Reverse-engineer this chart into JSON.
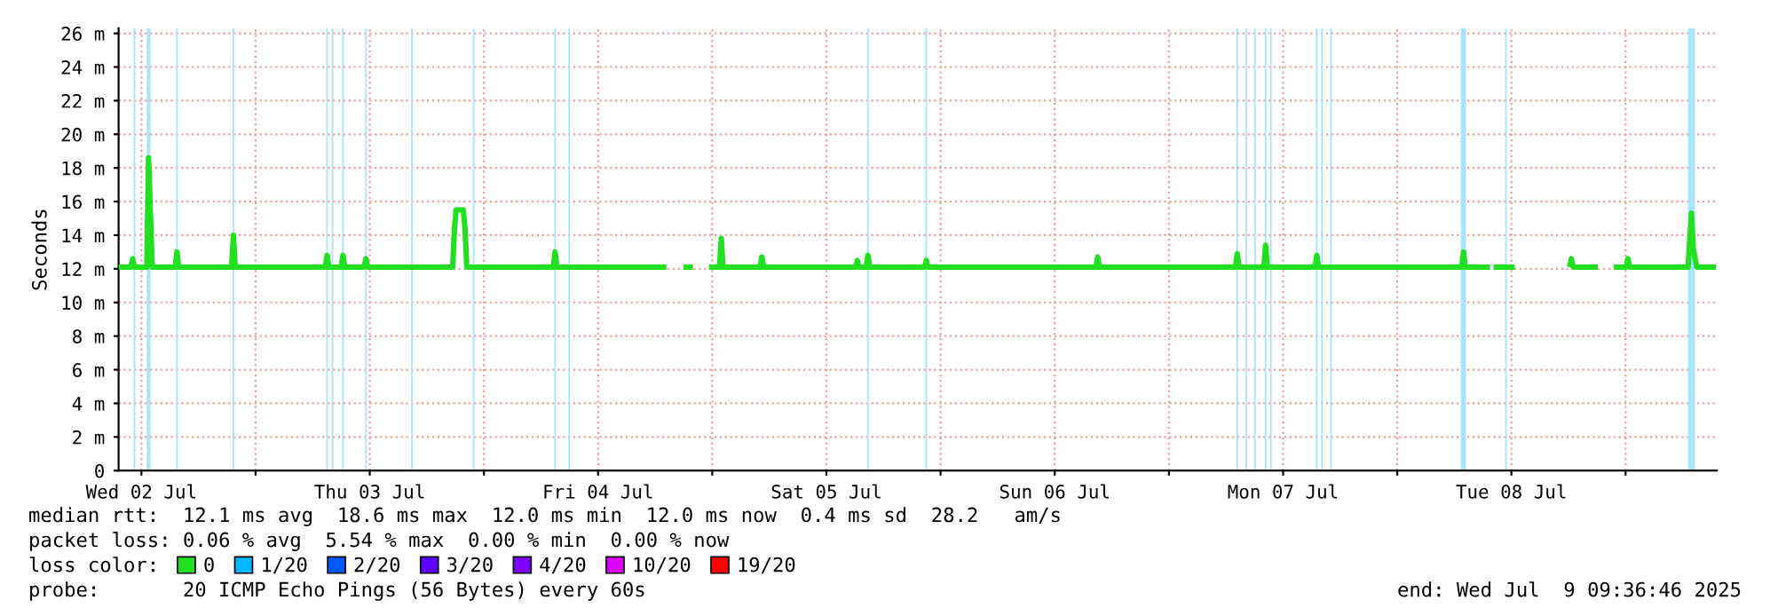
{
  "chart_data": {
    "type": "line",
    "ylabel": "Seconds",
    "legend_title": "loss color:",
    "legend": "bottom",
    "grid": true,
    "xlim": [
      "2025-07-02T09:36",
      "2025-07-09T09:36"
    ],
    "xticks": [
      {
        "value": "2025-07-02T12:00",
        "label": "Wed 02 Jul"
      },
      {
        "value": "2025-07-03T00:00",
        "label": null
      },
      {
        "value": "2025-07-03T12:00",
        "label": "Thu 03 Jul"
      },
      {
        "value": "2025-07-04T00:00",
        "label": null
      },
      {
        "value": "2025-07-04T12:00",
        "label": "Fri 04 Jul"
      },
      {
        "value": "2025-07-05T00:00",
        "label": null
      },
      {
        "value": "2025-07-05T12:00",
        "label": "Sat 05 Jul"
      },
      {
        "value": "2025-07-06T00:00",
        "label": null
      },
      {
        "value": "2025-07-06T12:00",
        "label": "Sun 06 Jul"
      },
      {
        "value": "2025-07-07T00:00",
        "label": null
      },
      {
        "value": "2025-07-07T12:00",
        "label": "Mon 07 Jul"
      },
      {
        "value": "2025-07-08T00:00",
        "label": null
      },
      {
        "value": "2025-07-08T12:00",
        "label": "Tue 08 Jul"
      },
      {
        "value": "2025-07-09T00:00",
        "label": null
      }
    ],
    "ylim": [
      0,
      26.3
    ],
    "yticks": [
      0,
      {
        "value": 2,
        "label": "2 m"
      },
      {
        "value": 4,
        "label": "4 m"
      },
      {
        "value": 6,
        "label": "6 m"
      },
      {
        "value": 8,
        "label": "8 m"
      },
      {
        "value": 10,
        "label": "10 m"
      },
      {
        "value": 12,
        "label": "12 m"
      },
      {
        "value": 14,
        "label": "14 m"
      },
      {
        "value": 16,
        "label": "16 m"
      },
      {
        "value": 18,
        "label": "18 m"
      },
      {
        "value": 20,
        "label": "20 m"
      },
      {
        "value": 22,
        "label": "22 m"
      },
      {
        "value": 24,
        "label": "24 m"
      },
      {
        "value": 26,
        "label": "26 m"
      }
    ],
    "series": [
      {
        "name": "0",
        "color": "#20e020",
        "x": [
          "2025-07-02T09:36",
          "2025-07-02T10:54",
          "2025-07-02T11:05",
          "2025-07-02T11:16",
          "2025-07-02T12:34",
          "2025-07-02T12:45",
          "2025-07-02T12:57",
          "2025-07-02T13:08",
          "2025-07-02T15:33",
          "2025-07-02T15:44",
          "2025-07-02T15:55",
          "2025-07-02T21:29",
          "2025-07-02T21:40",
          "2025-07-02T21:52",
          "2025-07-03T07:20",
          "2025-07-03T07:31",
          "2025-07-03T07:42",
          "2025-07-03T09:00",
          "2025-07-03T09:11",
          "2025-07-03T09:23",
          "2025-07-03T11:25",
          "2025-07-03T11:36",
          "2025-07-03T11:47",
          "2025-07-03T20:43",
          "2025-07-03T20:54",
          "2025-07-03T21:05",
          "2025-07-03T21:50",
          "2025-07-03T22:01",
          "2025-07-03T22:12",
          "2025-07-04T07:18",
          "2025-07-04T07:29",
          "2025-07-04T07:40",
          "2025-07-04T19:11",
          "2025-07-04T19:22",
          "2025-07-04T20:58",
          "2025-07-04T21:58",
          "2025-07-04T22:10",
          "2025-07-04T23:39",
          "2025-07-05T00:46",
          "2025-07-05T00:57",
          "2025-07-05T01:08",
          "2025-07-05T05:02",
          "2025-07-05T05:13",
          "2025-07-05T05:24",
          "2025-07-05T15:04",
          "2025-07-05T15:15",
          "2025-07-05T15:26",
          "2025-07-05T16:11",
          "2025-07-05T16:22",
          "2025-07-05T16:33",
          "2025-07-05T22:19",
          "2025-07-05T22:30",
          "2025-07-05T22:41",
          "2025-07-06T16:20",
          "2025-07-06T16:31",
          "2025-07-06T16:42",
          "2025-07-07T07:00",
          "2025-07-07T07:11",
          "2025-07-07T07:22",
          "2025-07-07T09:59",
          "2025-07-07T10:10",
          "2025-07-07T10:21",
          "2025-07-07T15:22",
          "2025-07-07T15:33",
          "2025-07-07T15:44",
          "2025-07-08T06:47",
          "2025-07-08T06:58",
          "2025-07-08T07:09",
          "2025-07-08T09:45",
          "2025-07-08T09:56",
          "2025-07-08T10:07",
          "2025-07-08T12:21",
          "2025-07-08T12:32",
          "2025-07-08T18:07",
          "2025-07-08T18:18",
          "2025-07-08T18:29",
          "2025-07-08T21:05",
          "2025-07-08T21:16",
          "2025-07-08T21:38",
          "2025-07-08T21:49",
          "2025-07-08T22:46",
          "2025-07-09T00:04",
          "2025-07-09T00:15",
          "2025-07-09T00:26",
          "2025-07-09T06:34",
          "2025-07-09T06:56",
          "2025-07-09T07:07",
          "2025-07-09T07:29",
          "2025-07-09T09:30"
        ],
        "values": [
          12.1,
          12.1,
          12.6,
          12.1,
          12.1,
          18.6,
          15.2,
          12.1,
          12.1,
          13.0,
          12.1,
          12.1,
          14.0,
          12.1,
          12.1,
          12.8,
          12.1,
          12.1,
          12.8,
          12.1,
          12.1,
          12.6,
          12.1,
          12.1,
          14.4,
          15.5,
          15.5,
          14.4,
          12.1,
          12.1,
          13.0,
          12.1,
          12.1,
          null,
          12.1,
          12.1,
          null,
          12.1,
          12.1,
          13.8,
          12.1,
          12.1,
          12.7,
          12.1,
          12.1,
          12.5,
          12.1,
          12.1,
          12.8,
          12.1,
          12.1,
          12.5,
          12.1,
          12.1,
          12.7,
          12.1,
          12.1,
          12.9,
          12.1,
          12.1,
          13.4,
          12.1,
          12.1,
          12.8,
          12.1,
          12.1,
          13.0,
          12.1,
          12.1,
          null,
          12.1,
          12.1,
          null,
          12.1,
          12.6,
          12.1,
          12.1,
          null,
          12.1,
          null,
          12.1,
          12.1,
          12.6,
          12.1,
          12.1,
          15.3,
          13.2,
          12.1,
          12.1
        ]
      },
      {
        "name": "1/20",
        "color": "#00b8ff"
      },
      {
        "name": "2/20",
        "color": "#0059ff"
      },
      {
        "name": "3/20",
        "color": "#5e00ff"
      },
      {
        "name": "4/20",
        "color": "#7e00ff"
      },
      {
        "name": "10/20",
        "color": "#dd00ff"
      },
      {
        "name": "19/20",
        "color": "#ff0000"
      }
    ],
    "bands": [
      {
        "axis": "x",
        "from": "2025-07-02T11:11",
        "to": "2025-07-02T11:21",
        "color": "#a8e4fb"
      },
      {
        "axis": "x",
        "from": "2025-07-02T12:34",
        "to": "2025-07-02T12:57",
        "color": "#a8e4fb"
      },
      {
        "axis": "x",
        "from": "2025-07-02T15:39",
        "to": "2025-07-02T15:49",
        "color": "#a8e4fb"
      },
      {
        "axis": "x",
        "from": "2025-07-02T21:35",
        "to": "2025-07-02T21:45",
        "color": "#a8e4fb"
      },
      {
        "axis": "x",
        "from": "2025-07-03T07:26",
        "to": "2025-07-03T07:36",
        "color": "#a8e4fb"
      },
      {
        "axis": "x",
        "from": "2025-07-03T08:00",
        "to": "2025-07-03T08:10",
        "color": "#a8e4fb"
      },
      {
        "axis": "x",
        "from": "2025-07-03T09:06",
        "to": "2025-07-03T09:16",
        "color": "#a8e4fb"
      },
      {
        "axis": "x",
        "from": "2025-07-03T11:31",
        "to": "2025-07-03T11:41",
        "color": "#a8e4fb"
      },
      {
        "axis": "x",
        "from": "2025-07-03T16:21",
        "to": "2025-07-03T16:31",
        "color": "#a8e4fb"
      },
      {
        "axis": "x",
        "from": "2025-07-03T22:51",
        "to": "2025-07-03T23:01",
        "color": "#a8e4fb"
      },
      {
        "axis": "x",
        "from": "2025-07-04T07:24",
        "to": "2025-07-04T07:34",
        "color": "#a8e4fb"
      },
      {
        "axis": "x",
        "from": "2025-07-04T08:53",
        "to": "2025-07-04T09:03",
        "color": "#a8e4fb"
      },
      {
        "axis": "x",
        "from": "2025-07-05T16:17",
        "to": "2025-07-05T16:27",
        "color": "#a8e4fb"
      },
      {
        "axis": "x",
        "from": "2025-07-05T22:25",
        "to": "2025-07-05T22:35",
        "color": "#a8e4fb"
      },
      {
        "axis": "x",
        "from": "2025-07-07T07:06",
        "to": "2025-07-07T07:16",
        "color": "#a8e4fb"
      },
      {
        "axis": "x",
        "from": "2025-07-07T08:02",
        "to": "2025-07-07T08:12",
        "color": "#a8e4fb"
      },
      {
        "axis": "x",
        "from": "2025-07-07T08:58",
        "to": "2025-07-07T09:08",
        "color": "#a8e4fb"
      },
      {
        "axis": "x",
        "from": "2025-07-07T10:05",
        "to": "2025-07-07T10:15",
        "color": "#a8e4fb"
      },
      {
        "axis": "x",
        "from": "2025-07-07T10:38",
        "to": "2025-07-07T10:48",
        "color": "#a8e4fb"
      },
      {
        "axis": "x",
        "from": "2025-07-07T15:28",
        "to": "2025-07-07T15:38",
        "color": "#a8e4fb"
      },
      {
        "axis": "x",
        "from": "2025-07-07T16:01",
        "to": "2025-07-07T16:11",
        "color": "#a8e4fb"
      },
      {
        "axis": "x",
        "from": "2025-07-07T16:57",
        "to": "2025-07-07T17:07",
        "color": "#a8e4fb"
      },
      {
        "axis": "x",
        "from": "2025-07-08T06:41",
        "to": "2025-07-08T07:14",
        "color": "#a8e4fb"
      },
      {
        "axis": "x",
        "from": "2025-07-08T11:21",
        "to": "2025-07-08T11:31",
        "color": "#a8e4fb"
      },
      {
        "axis": "x",
        "from": "2025-07-09T06:34",
        "to": "2025-07-09T07:18",
        "color": "#a8e4fb"
      }
    ],
    "annotations": [
      "median rtt:  12.1 ms avg  18.6 ms max  12.0 ms min  12.0 ms now  0.4 ms sd  28.2   am/s",
      "packet loss: 0.06 % avg  5.54 % max  0.00 % min  0.00 % now",
      "probe:       20 ICMP Echo Pings (56 Bytes) every 60s",
      "end: Wed Jul  9 09:36:46 2025"
    ]
  }
}
